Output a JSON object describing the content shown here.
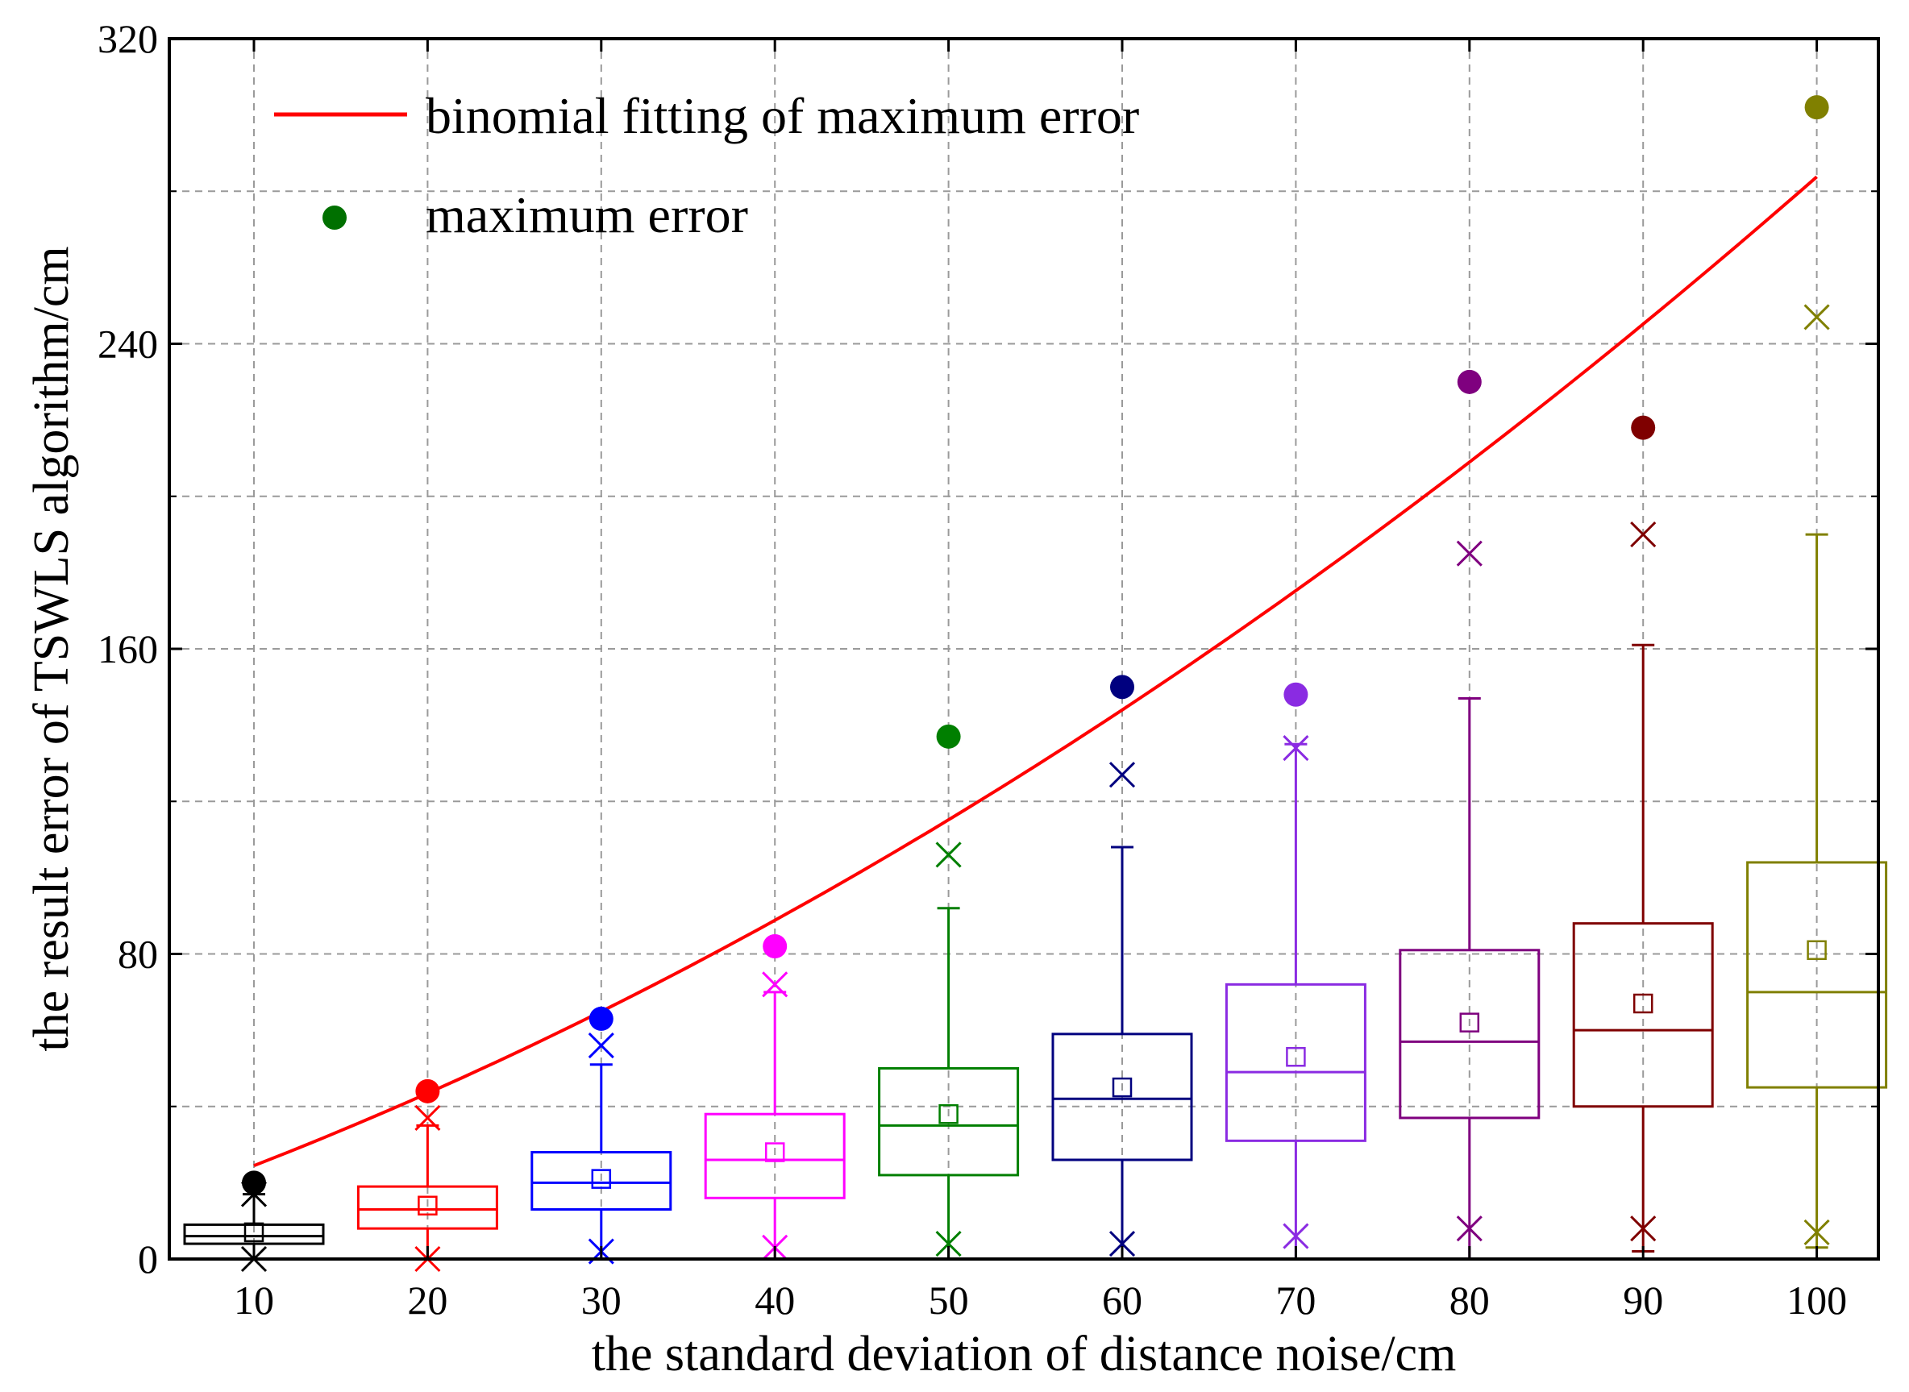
{
  "chart_data": {
    "type": "box",
    "title": "",
    "xlabel": "the standard deviation of distance noise/cm",
    "ylabel": "the result error of TSWLS algorithm/cm",
    "ylim": [
      0,
      320
    ],
    "yticks": [
      0,
      80,
      160,
      240,
      320
    ],
    "grid": true,
    "legend": {
      "placement": "top-left",
      "entries": [
        {
          "label": "binomial fitting of maximum error",
          "marker": "line",
          "color": "#ff0000"
        },
        {
          "label": "maximum error",
          "marker": "dot",
          "color": "#007000"
        }
      ]
    },
    "categories": [
      "10",
      "20",
      "30",
      "40",
      "50",
      "60",
      "70",
      "80",
      "90",
      "100"
    ],
    "boxes": [
      {
        "x": 10,
        "color": "#000000",
        "q1": 4,
        "median": 6,
        "q3": 9,
        "mean": 7,
        "whisker_low": 0,
        "whisker_high": 17,
        "x_low": 0,
        "x_high": 17,
        "max": 20
      },
      {
        "x": 20,
        "color": "#ff0000",
        "q1": 8,
        "median": 13,
        "q3": 19,
        "mean": 14,
        "whisker_low": 0,
        "whisker_high": 35,
        "x_low": 0,
        "x_high": 37,
        "max": 44
      },
      {
        "x": 30,
        "color": "#0000ff",
        "q1": 13,
        "median": 20,
        "q3": 28,
        "mean": 21,
        "whisker_low": 0,
        "whisker_high": 51,
        "x_low": 2,
        "x_high": 56,
        "max": 63
      },
      {
        "x": 40,
        "color": "#ff00ff",
        "q1": 16,
        "median": 26,
        "q3": 38,
        "mean": 28,
        "whisker_low": 0,
        "whisker_high": 70,
        "x_low": 3,
        "x_high": 72,
        "max": 82
      },
      {
        "x": 50,
        "color": "#007f00",
        "q1": 22,
        "median": 35,
        "q3": 50,
        "mean": 38,
        "whisker_low": 0,
        "whisker_high": 92,
        "x_low": 4,
        "x_high": 106,
        "max": 137
      },
      {
        "x": 60,
        "color": "#00007f",
        "q1": 26,
        "median": 42,
        "q3": 59,
        "mean": 45,
        "whisker_low": 0,
        "whisker_high": 108,
        "x_low": 4,
        "x_high": 127,
        "max": 150
      },
      {
        "x": 70,
        "color": "#8a2be2",
        "q1": 31,
        "median": 49,
        "q3": 72,
        "mean": 53,
        "whisker_low": 0,
        "whisker_high": 135,
        "x_low": 6,
        "x_high": 134,
        "max": 148
      },
      {
        "x": 80,
        "color": "#7f007f",
        "q1": 37,
        "median": 57,
        "q3": 81,
        "mean": 62,
        "whisker_low": 0,
        "whisker_high": 147,
        "x_low": 8,
        "x_high": 185,
        "max": 230
      },
      {
        "x": 90,
        "color": "#7f0000",
        "q1": 40,
        "median": 60,
        "q3": 88,
        "mean": 67,
        "whisker_low": 2,
        "whisker_high": 161,
        "x_low": 8,
        "x_high": 190,
        "max": 218
      },
      {
        "x": 100,
        "color": "#808000",
        "q1": 45,
        "median": 70,
        "q3": 104,
        "mean": 81,
        "whisker_low": 3,
        "whisker_high": 190,
        "x_low": 7,
        "x_high": 247,
        "max": 302
      }
    ],
    "fit_curve": {
      "name": "binomial fitting of maximum error",
      "color": "#ff0000",
      "x": [
        10,
        20,
        30,
        40,
        50,
        60,
        70,
        80,
        90,
        100
      ],
      "y": [
        24,
        44,
        65,
        89,
        115,
        144,
        175,
        209,
        245,
        284
      ]
    }
  }
}
